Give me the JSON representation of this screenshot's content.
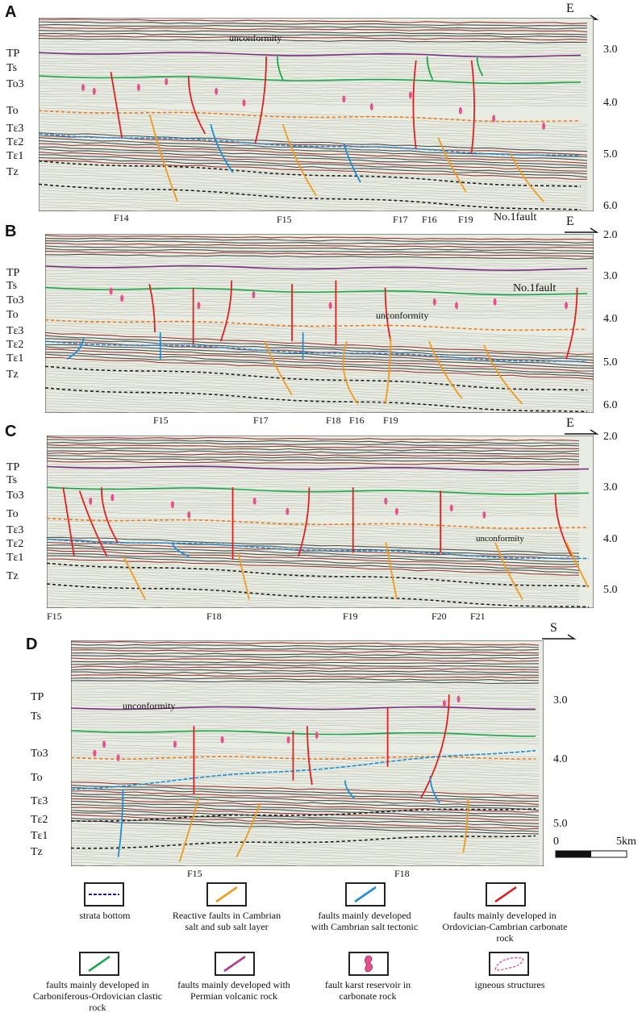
{
  "panels": [
    {
      "id": "A",
      "direction": "E",
      "horizons": [
        "TP",
        "Ts",
        "To3",
        "To",
        "Tε3",
        "Tε2",
        "Tε1",
        "Tz"
      ],
      "ticks": [
        "3.0",
        "4.0",
        "5.0",
        "6.0"
      ],
      "fault_labels": [
        "F14",
        "F15",
        "F17",
        "F16",
        "F19",
        "No.1fault"
      ],
      "annotations": [
        "unconformity"
      ]
    },
    {
      "id": "B",
      "direction": "E",
      "horizons": [
        "TP",
        "Ts",
        "To3",
        "To",
        "Tε3",
        "Tε2",
        "Tε1",
        "Tz"
      ],
      "ticks": [
        "2.0",
        "3.0",
        "4.0",
        "5.0",
        "6.0"
      ],
      "fault_labels": [
        "F15",
        "F17",
        "F18",
        "F16",
        "F19"
      ],
      "annotations": [
        "No.1fault",
        "unconformity"
      ]
    },
    {
      "id": "C",
      "direction": "E",
      "horizons": [
        "TP",
        "Ts",
        "To3",
        "To",
        "Tε3",
        "Tε2",
        "Tε1",
        "Tz"
      ],
      "ticks": [
        "2.0",
        "3.0",
        "4.0",
        "5.0"
      ],
      "fault_labels": [
        "F15",
        "F18",
        "F19",
        "F20",
        "F21"
      ],
      "annotations": [
        "unconformity"
      ]
    },
    {
      "id": "D",
      "direction": "S",
      "horizons": [
        "TP",
        "Ts",
        "To3",
        "To",
        "Tε3",
        "Tε2",
        "Tε1",
        "Tz"
      ],
      "ticks": [
        "3.0",
        "4.0",
        "5.0"
      ],
      "fault_labels": [
        "F15",
        "F18"
      ],
      "annotations": [
        "unconformity"
      ],
      "scale": {
        "start": "0",
        "end": "5km"
      }
    }
  ],
  "legend": [
    {
      "text": "strata  bottom",
      "color": "#1a1aa0",
      "style": "dashed"
    },
    {
      "text": "Reactive faults in Cambrian salt and sub salt layer",
      "color": "#f39a1e",
      "style": "line"
    },
    {
      "text": "faults mainly developed with Cambrian salt tectonic",
      "color": "#1e8fd6",
      "style": "line"
    },
    {
      "text": "faults mainly developed in Ordovician-Cambrian carbonate rock",
      "color": "#e32020",
      "style": "line"
    },
    {
      "text": "faults mainly developed in Carboniferous-Ordovician clastic rock",
      "color": "#1aa84a",
      "style": "line"
    },
    {
      "text": "faults mainly developed with Permian volcanic rock",
      "color": "#b43c8c",
      "style": "line"
    },
    {
      "text": "fault karst reservoir in carbonate rock",
      "color": "#e8508c",
      "style": "blob"
    },
    {
      "text": "igneous structures",
      "color": "#e8508c",
      "style": "dashed-outline"
    }
  ]
}
